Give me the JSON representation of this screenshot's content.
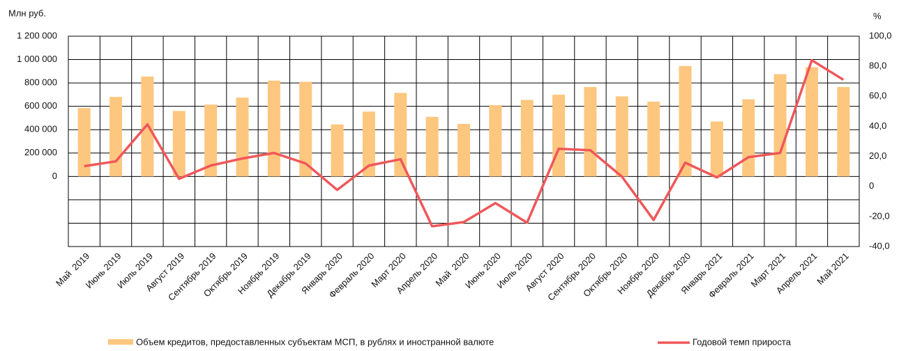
{
  "chart_data": {
    "type": "bar_line",
    "y_label": "Млн руб.",
    "y2_label": "%",
    "categories": [
      "Май  2019",
      "Июнь 2019",
      "Июль 2019",
      "Август 2019",
      "Сентябрь 2019",
      "Октябрь 2019",
      "Ноябрь 2019",
      "Декабрь 2019",
      "Январь 2020",
      "Февраль 2020",
      "Март 2020",
      "Апрель 2020",
      "Май  2020",
      "Июнь 2020",
      "Июль 2020",
      "Август 2020",
      "Сентябрь 2020",
      "Октябрь 2020",
      "Ноябрь 2020",
      "Декабрь 2020",
      "Январь 2021",
      "Февраль 2021",
      "Март 2021",
      "Апрель 2021",
      "Май 2021"
    ],
    "series": [
      {
        "name": "Объем кредитов, предоставленных субъектам МСП, в рублях и иностранной валюте",
        "type": "bar",
        "color": "#fdc77f",
        "values": [
          585000,
          680000,
          855000,
          560000,
          615000,
          675000,
          820000,
          810000,
          445000,
          555000,
          715000,
          510000,
          450000,
          610000,
          655000,
          700000,
          765000,
          685000,
          640000,
          945000,
          470000,
          660000,
          875000,
          935000,
          765000
        ]
      },
      {
        "name": "Годовой темп прироста",
        "type": "line",
        "axis": "y2",
        "color": "#f0575a",
        "values": [
          13.5,
          16.7,
          41.3,
          5.1,
          13.9,
          18.6,
          22.3,
          15.3,
          -2.3,
          13.9,
          18.1,
          -26.5,
          -23.7,
          -11.1,
          -24.1,
          25.1,
          24.1,
          6.5,
          -22.3,
          15.8,
          6.0,
          19.5,
          22.3,
          84.0,
          71.0
        ]
      }
    ],
    "ylim": [
      -600000,
      1200000
    ],
    "yticks": [
      0,
      {
        "value": 200000,
        "label": "200 000"
      },
      {
        "value": 400000,
        "label": "400 000"
      },
      {
        "value": 600000,
        "label": "600 000"
      },
      {
        "value": 800000,
        "label": "800 000"
      },
      {
        "value": 1000000,
        "label": "1 000 000"
      },
      {
        "value": 1200000,
        "label": "1 200 000"
      }
    ],
    "y2lim": [
      -40,
      100
    ],
    "y2ticks": [
      {
        "value": -40,
        "label": "-40,0"
      },
      {
        "value": -20,
        "label": "-20,0"
      },
      0,
      {
        "value": 20,
        "label": "20,0"
      },
      {
        "value": 40,
        "label": "40,0"
      },
      {
        "value": 60,
        "label": "60,0"
      },
      {
        "value": 80,
        "label": "80,0"
      },
      {
        "value": 100,
        "label": "100,0"
      }
    ],
    "grid": true,
    "legend": "bottom"
  }
}
